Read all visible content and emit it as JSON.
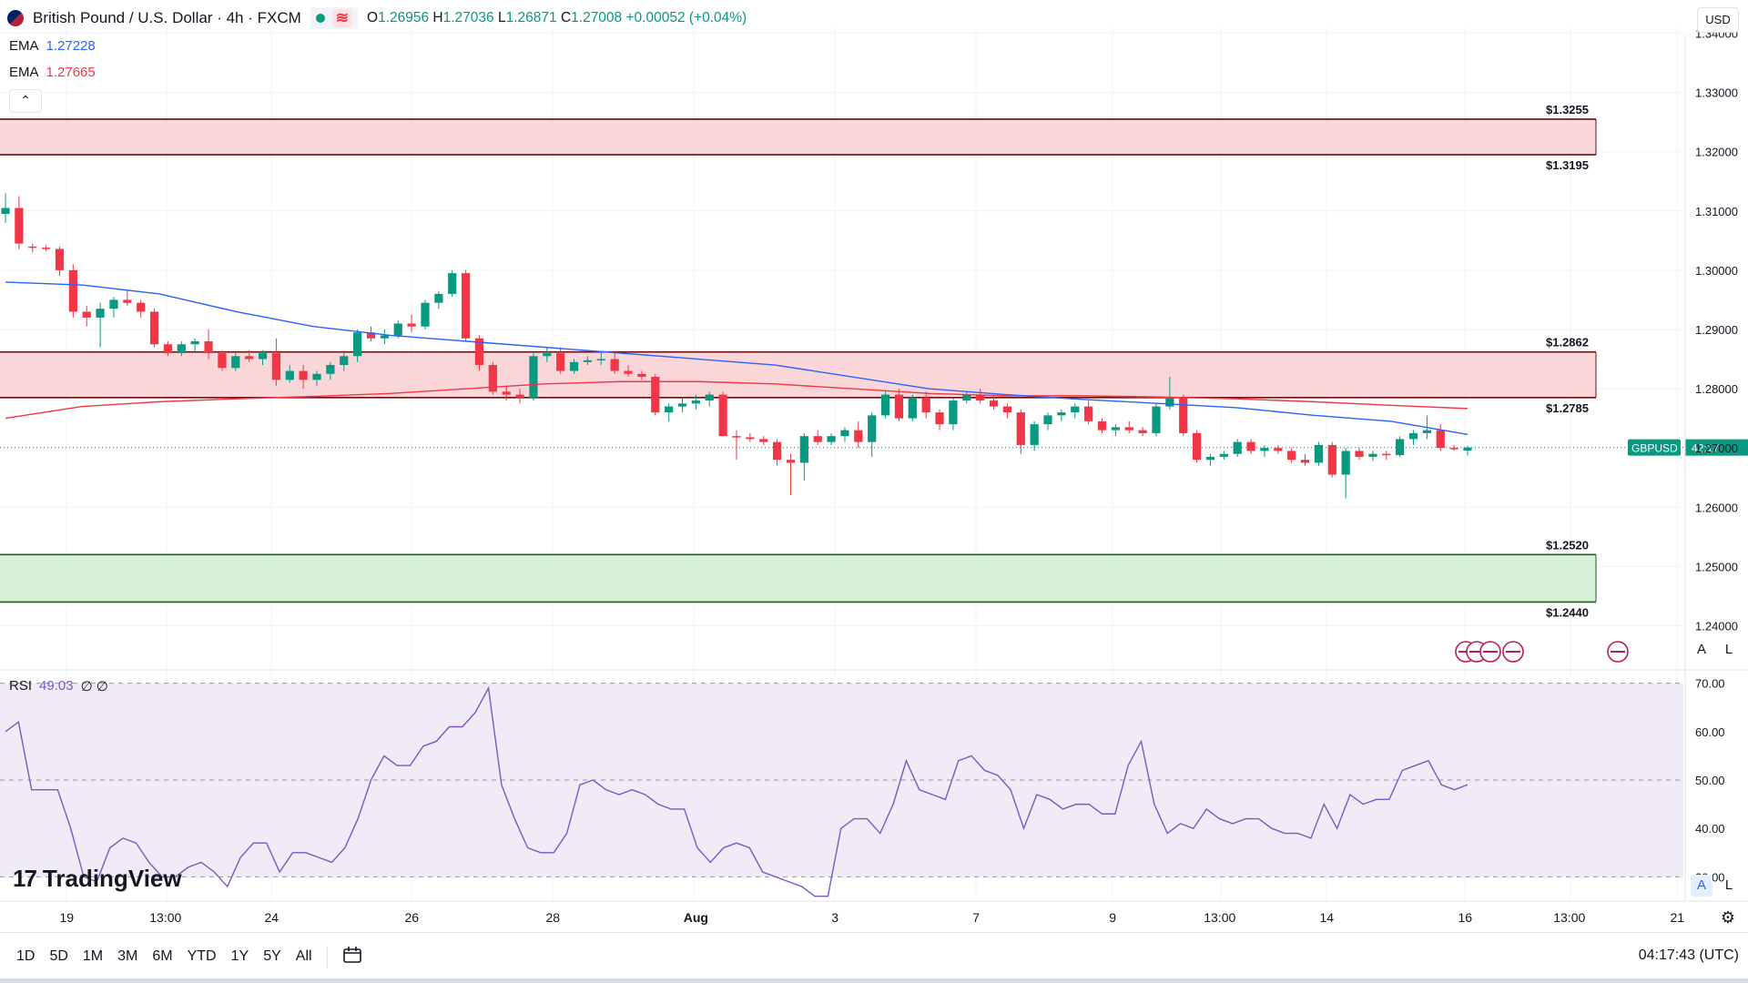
{
  "header": {
    "symbol_title": "British Pound / U.S. Dollar · 4h · FXCM",
    "open_label": "O",
    "open": "1.26956",
    "high_label": "H",
    "high": "1.27036",
    "low_label": "L",
    "low": "1.26871",
    "close_label": "C",
    "close": "1.27008",
    "change": "+0.00052 (+0.04%)",
    "wave_icon": "≋"
  },
  "indicators": {
    "ema1_label": "EMA",
    "ema1_value": "1.27228",
    "ema2_label": "EMA",
    "ema2_value": "1.27665",
    "rsi_label": "RSI",
    "rsi_value": "49.03",
    "rsi_extra": "∅ ∅"
  },
  "currency_button": "USD",
  "collapse_icon": "⌃",
  "logo_text": "TradingView",
  "logo_mark": "17",
  "bottom_toolbar": {
    "ranges": [
      "1D",
      "5D",
      "1M",
      "3M",
      "6M",
      "YTD",
      "1Y",
      "5Y",
      "All"
    ],
    "calendar_icon": "calendar-icon",
    "clock": "04:17:43 (UTC)"
  },
  "price_tag": {
    "symbol": "GBPUSD",
    "countdown": "42:17"
  },
  "scale_buttons": {
    "auto": "A",
    "log": "L"
  },
  "colors": {
    "up": "#089981",
    "down": "#f23645",
    "ema_fast": "#2962ff",
    "ema_slow": "#f23645",
    "resistance_zone": "#f8c8cc",
    "support_zone": "#c8ecc8",
    "rsi": "#7e57c2",
    "rsi_band": "#ede7f6"
  },
  "chart_data": {
    "type": "candlestick",
    "title": "British Pound / U.S. Dollar · 4h · FXCM",
    "price_axis": {
      "ticks": [
        "1.34000",
        "1.33000",
        "1.32000",
        "1.31000",
        "1.30000",
        "1.29000",
        "1.28000",
        "1.27000",
        "1.26000",
        "1.25000",
        "1.24000"
      ],
      "ylim": [
        1.233,
        1.341
      ]
    },
    "time_axis": {
      "ticks": [
        "19",
        "13:00",
        "24",
        "26",
        "28",
        "Aug",
        "3",
        "7",
        "9",
        "13:00",
        "14",
        "16",
        "13:00",
        "21"
      ]
    },
    "zones": [
      {
        "kind": "resistance",
        "top": 1.3255,
        "bottom": 1.3195,
        "top_label": "1.3255",
        "bottom_label": "1.3195"
      },
      {
        "kind": "resistance",
        "top": 1.2862,
        "bottom": 1.2785,
        "top_label": "1.2862",
        "bottom_label": "1.2785"
      },
      {
        "kind": "support",
        "top": 1.252,
        "bottom": 1.244,
        "top_label": "1.2520",
        "bottom_label": "1.2440"
      }
    ],
    "candles": [
      [
        1.3095,
        1.313,
        1.308,
        1.3105
      ],
      [
        1.3105,
        1.3125,
        1.3035,
        1.3045
      ],
      [
        1.304,
        1.3045,
        1.303,
        1.3038
      ],
      [
        1.3038,
        1.3042,
        1.3032,
        1.3036
      ],
      [
        1.3036,
        1.304,
        1.299,
        1.3
      ],
      [
        1.3,
        1.301,
        1.292,
        1.293
      ],
      [
        1.293,
        1.294,
        1.2905,
        1.292
      ],
      [
        1.292,
        1.2945,
        1.287,
        1.2935
      ],
      [
        1.2935,
        1.2955,
        1.292,
        1.295
      ],
      [
        1.295,
        1.2965,
        1.294,
        1.2945
      ],
      [
        1.2945,
        1.295,
        1.292,
        1.293
      ],
      [
        1.293,
        1.2935,
        1.287,
        1.2875
      ],
      [
        1.2875,
        1.288,
        1.2855,
        1.286
      ],
      [
        1.286,
        1.288,
        1.2855,
        1.2875
      ],
      [
        1.2875,
        1.2885,
        1.286,
        1.288
      ],
      [
        1.288,
        1.29,
        1.285,
        1.286
      ],
      [
        1.286,
        1.2865,
        1.283,
        1.2835
      ],
      [
        1.2835,
        1.286,
        1.283,
        1.2855
      ],
      [
        1.2855,
        1.2865,
        1.2845,
        1.285
      ],
      [
        1.285,
        1.2865,
        1.284,
        1.286
      ],
      [
        1.286,
        1.2885,
        1.2805,
        1.2815
      ],
      [
        1.2815,
        1.284,
        1.281,
        1.283
      ],
      [
        1.283,
        1.284,
        1.28,
        1.2815
      ],
      [
        1.2815,
        1.283,
        1.2805,
        1.2825
      ],
      [
        1.2825,
        1.2845,
        1.2815,
        1.284
      ],
      [
        1.284,
        1.286,
        1.283,
        1.2855
      ],
      [
        1.2855,
        1.29,
        1.2845,
        1.2895
      ],
      [
        1.2895,
        1.2905,
        1.288,
        1.2885
      ],
      [
        1.2885,
        1.29,
        1.2875,
        1.289
      ],
      [
        1.289,
        1.2915,
        1.2885,
        1.291
      ],
      [
        1.291,
        1.2925,
        1.2895,
        1.2905
      ],
      [
        1.2905,
        1.295,
        1.29,
        1.2945
      ],
      [
        1.2945,
        1.2965,
        1.2935,
        1.296
      ],
      [
        1.296,
        1.3,
        1.2955,
        1.2995
      ],
      [
        1.2995,
        1.3,
        1.288,
        1.2885
      ],
      [
        1.2885,
        1.289,
        1.283,
        1.284
      ],
      [
        1.284,
        1.2845,
        1.279,
        1.2795
      ],
      [
        1.2795,
        1.2805,
        1.278,
        1.279
      ],
      [
        1.279,
        1.28,
        1.2775,
        1.2785
      ],
      [
        1.2785,
        1.286,
        1.278,
        1.2855
      ],
      [
        1.2855,
        1.287,
        1.2845,
        1.286
      ],
      [
        1.286,
        1.287,
        1.2825,
        1.283
      ],
      [
        1.283,
        1.285,
        1.2825,
        1.2845
      ],
      [
        1.2845,
        1.2855,
        1.284,
        1.2848
      ],
      [
        1.2848,
        1.286,
        1.284,
        1.285
      ],
      [
        1.285,
        1.286,
        1.2825,
        1.283
      ],
      [
        1.283,
        1.284,
        1.282,
        1.2825
      ],
      [
        1.2825,
        1.283,
        1.2815,
        1.282
      ],
      [
        1.282,
        1.2825,
        1.2755,
        1.276
      ],
      [
        1.276,
        1.2775,
        1.2745,
        1.277
      ],
      [
        1.277,
        1.2785,
        1.276,
        1.2775
      ],
      [
        1.2775,
        1.279,
        1.2765,
        1.278
      ],
      [
        1.278,
        1.2795,
        1.277,
        1.279
      ],
      [
        1.279,
        1.2795,
        1.272,
        1.272
      ],
      [
        1.272,
        1.273,
        1.268,
        1.2718
      ],
      [
        1.2718,
        1.2725,
        1.271,
        1.2715
      ],
      [
        1.2715,
        1.272,
        1.2705,
        1.271
      ],
      [
        1.271,
        1.2715,
        1.267,
        1.268
      ],
      [
        1.268,
        1.269,
        1.262,
        1.2675
      ],
      [
        1.2675,
        1.2725,
        1.2645,
        1.272
      ],
      [
        1.272,
        1.273,
        1.2705,
        1.271
      ],
      [
        1.271,
        1.2725,
        1.2705,
        1.272
      ],
      [
        1.272,
        1.2735,
        1.271,
        1.273
      ],
      [
        1.273,
        1.2745,
        1.27,
        1.271
      ],
      [
        1.271,
        1.276,
        1.2685,
        1.2755
      ],
      [
        1.2755,
        1.2795,
        1.275,
        1.279
      ],
      [
        1.279,
        1.28,
        1.2745,
        1.275
      ],
      [
        1.275,
        1.279,
        1.2745,
        1.2785
      ],
      [
        1.2785,
        1.2795,
        1.275,
        1.276
      ],
      [
        1.276,
        1.2765,
        1.273,
        1.274
      ],
      [
        1.274,
        1.2785,
        1.273,
        1.278
      ],
      [
        1.278,
        1.2795,
        1.2775,
        1.279
      ],
      [
        1.279,
        1.28,
        1.2775,
        1.278
      ],
      [
        1.278,
        1.279,
        1.2765,
        1.277
      ],
      [
        1.277,
        1.2775,
        1.275,
        1.276
      ],
      [
        1.276,
        1.2765,
        1.269,
        1.2705
      ],
      [
        1.2705,
        1.2745,
        1.2695,
        1.274
      ],
      [
        1.274,
        1.276,
        1.273,
        1.2755
      ],
      [
        1.2755,
        1.2765,
        1.2745,
        1.276
      ],
      [
        1.276,
        1.2775,
        1.275,
        1.277
      ],
      [
        1.277,
        1.278,
        1.274,
        1.2745
      ],
      [
        1.2745,
        1.275,
        1.2725,
        1.273
      ],
      [
        1.273,
        1.274,
        1.272,
        1.2735
      ],
      [
        1.2735,
        1.2745,
        1.2725,
        1.273
      ],
      [
        1.273,
        1.2735,
        1.272,
        1.2725
      ],
      [
        1.2725,
        1.2775,
        1.272,
        1.277
      ],
      [
        1.277,
        1.282,
        1.2765,
        1.2785
      ],
      [
        1.2785,
        1.279,
        1.272,
        1.2725
      ],
      [
        1.2725,
        1.273,
        1.2675,
        1.268
      ],
      [
        1.268,
        1.269,
        1.267,
        1.2685
      ],
      [
        1.2685,
        1.2695,
        1.268,
        1.269
      ],
      [
        1.269,
        1.2715,
        1.2685,
        1.271
      ],
      [
        1.271,
        1.2715,
        1.269,
        1.2695
      ],
      [
        1.2695,
        1.2705,
        1.2685,
        1.27
      ],
      [
        1.27,
        1.2705,
        1.269,
        1.2695
      ],
      [
        1.2695,
        1.27,
        1.2675,
        1.268
      ],
      [
        1.268,
        1.269,
        1.267,
        1.2675
      ],
      [
        1.2675,
        1.271,
        1.267,
        1.2705
      ],
      [
        1.2705,
        1.271,
        1.265,
        1.2655
      ],
      [
        1.2655,
        1.27,
        1.2615,
        1.2695
      ],
      [
        1.2695,
        1.27,
        1.268,
        1.2685
      ],
      [
        1.2685,
        1.2695,
        1.2678,
        1.269
      ],
      [
        1.269,
        1.2695,
        1.268,
        1.2688
      ],
      [
        1.2688,
        1.272,
        1.2685,
        1.2715
      ],
      [
        1.2715,
        1.273,
        1.2705,
        1.2725
      ],
      [
        1.2725,
        1.2755,
        1.2715,
        1.273
      ],
      [
        1.273,
        1.274,
        1.2695,
        1.27
      ],
      [
        1.27,
        1.2705,
        1.2695,
        1.2698
      ],
      [
        1.26956,
        1.27036,
        1.26871,
        1.27008
      ]
    ],
    "ema_fast": [
      1.298,
      1.2975,
      1.296,
      1.293,
      1.2905,
      1.289,
      1.288,
      1.287,
      1.286,
      1.285,
      1.284,
      1.282,
      1.28,
      1.279,
      1.2782,
      1.2775,
      1.2768,
      1.2755,
      1.2745,
      1.27228
    ],
    "ema_slow": [
      1.275,
      1.277,
      1.2778,
      1.2783,
      1.2787,
      1.2792,
      1.28,
      1.2808,
      1.2812,
      1.2812,
      1.2808,
      1.28,
      1.2792,
      1.2788,
      1.2788,
      1.2786,
      1.2783,
      1.2778,
      1.2772,
      1.27665
    ],
    "rsi": {
      "label": "RSI",
      "value": 49.03,
      "ylim": [
        25,
        72
      ],
      "upper": 70,
      "lower": 30,
      "mid": 50,
      "ticks": [
        "70.00",
        "60.00",
        "50.00",
        "40.00",
        "30.00"
      ],
      "values": [
        60,
        62,
        48,
        48,
        48,
        40,
        30,
        29,
        36,
        38,
        37,
        33,
        30,
        30,
        32,
        33,
        31,
        28,
        34,
        37,
        37,
        31,
        35,
        35,
        34,
        33,
        36,
        42,
        50,
        55,
        53,
        53,
        57,
        58,
        61,
        61,
        64,
        69,
        49,
        42,
        36,
        35,
        35,
        39,
        49,
        50,
        48,
        47,
        48,
        47,
        45,
        44,
        44,
        36,
        33,
        36,
        37,
        36,
        31,
        30,
        29,
        28,
        26,
        26,
        40,
        42,
        42,
        39,
        45,
        54,
        48,
        47,
        46,
        54,
        55,
        52,
        51,
        48,
        40,
        47,
        46,
        44,
        45,
        45,
        43,
        43,
        53,
        58,
        45,
        39,
        41,
        40,
        44,
        42,
        41,
        42,
        42,
        40,
        39,
        39,
        38,
        45,
        40,
        47,
        45,
        46,
        46,
        52,
        53,
        54,
        49,
        48,
        49.03
      ]
    }
  }
}
